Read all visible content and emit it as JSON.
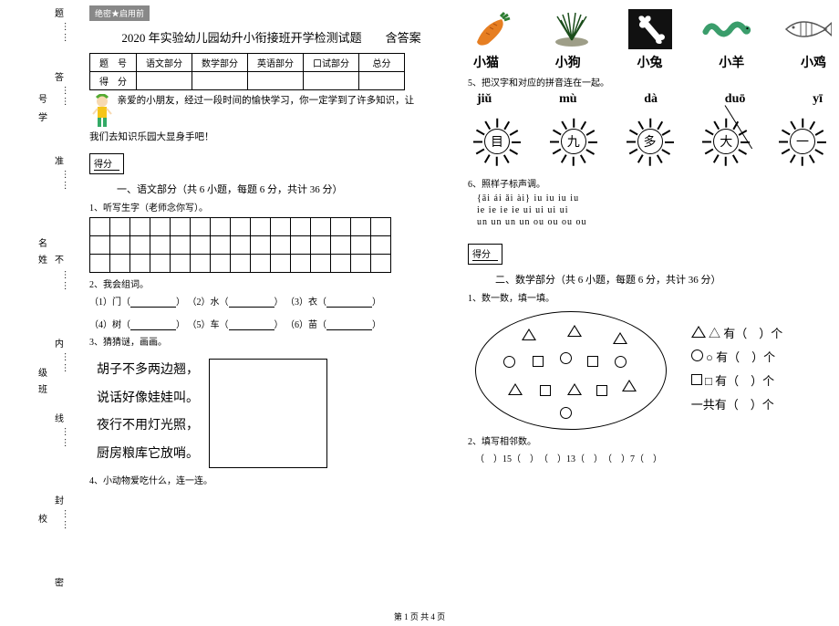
{
  "margin": {
    "labels": [
      "题",
      "答",
      "号",
      "学",
      "准",
      "名",
      "姓",
      "不",
      "内",
      "级",
      "班",
      "线",
      "封",
      "校",
      "密"
    ],
    "dot": "……"
  },
  "header": {
    "tag": "绝密★启用前",
    "title": "2020 年实验幼儿园幼升小衔接班开学检测试题　　含答案"
  },
  "score_table": {
    "row1": [
      "题　号",
      "语文部分",
      "数学部分",
      "英语部分",
      "口试部分",
      "总分"
    ],
    "row2_label": "得　分"
  },
  "intro": {
    "line1": "亲爱的小朋友，经过一段时间的愉快学习，你一定学到了许多知识，让",
    "line2": "我们去知识乐园大显身手吧！"
  },
  "scorebox_label": "得分",
  "sections": {
    "chinese": "一、语文部分（共 6 小题，每题 6 分，共计 36 分）",
    "math": "二、数学部分（共 6 小题，每题 6 分，共计 36 分）"
  },
  "q_chinese": {
    "q1": "1、听写生字（老师念你写）。",
    "q2": "2、我会组词。",
    "q2_items": [
      "（1）门（",
      "）",
      "（2）水（",
      "）",
      "（3）衣（",
      "）"
    ],
    "q2_items2": [
      "（4）树（",
      "）",
      "（5）车（",
      "）",
      "（6）苗（",
      "）"
    ],
    "q3": "3、猜猜谜，画画。",
    "riddle": [
      "胡子不多两边翘，",
      "说话好像娃娃叫。",
      "夜行不用灯光照，",
      "厨房粮库它放哨。"
    ],
    "q4": "4、小动物爱吃什么，连一连。",
    "q5": "5、把汉字和对应的拼音连在一起。",
    "q6": "6、照样子标声调。"
  },
  "animals": [
    "小猫",
    "小狗",
    "小兔",
    "小羊",
    "小鸡"
  ],
  "pinyin": [
    "jiǔ",
    "mù",
    "dà",
    "duō",
    "yī"
  ],
  "sun_chars": [
    "目",
    "九",
    "多",
    "大",
    "一"
  ],
  "tones": {
    "row1": "{āi   ái   ǎi   ài}    iu   iu   iu   iu",
    "row2": " ie   ie   ie   ie     ui   ui   ui   ui",
    "row3": " un   un   un   un    ou   ou   ou   ou"
  },
  "q_math": {
    "q1": "1、数一数，填一填。",
    "q2": "2、填写相邻数。",
    "fill": "（　）15（　）　（　）13（　）　（　）7（　）",
    "right_lines": [
      "△ 有（　）个",
      "○ 有（　）个",
      "□ 有（　）个",
      "一共有（　）个"
    ]
  },
  "footer": "第 1 页  共 4 页",
  "colors": {
    "carrot": "#e67e22",
    "leaf": "#2e7d32",
    "grass": "#4a6b3a",
    "bone_bg": "#111",
    "worm": "#3a9d6b",
    "fish": "#555"
  }
}
